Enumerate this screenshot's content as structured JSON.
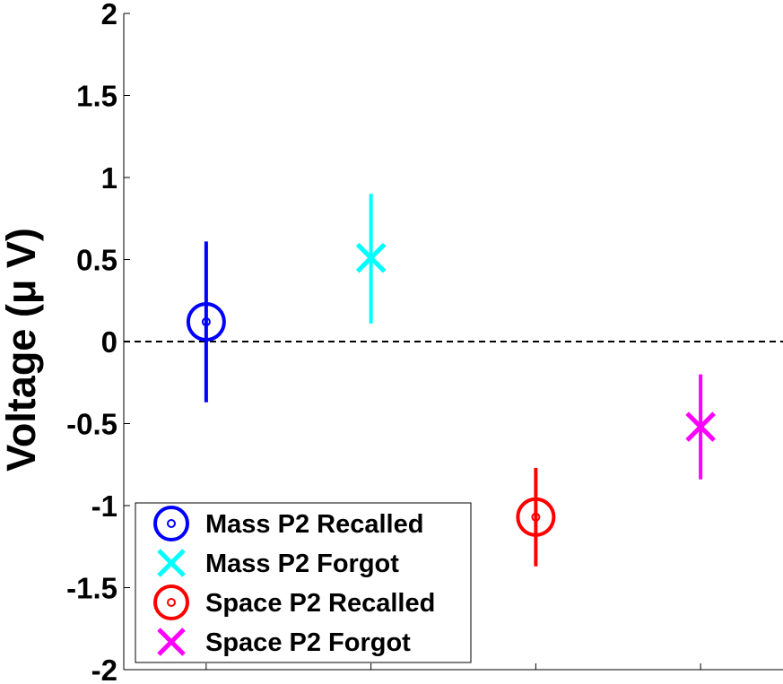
{
  "chart_data": {
    "type": "scatter",
    "title": "",
    "xlabel": "",
    "ylabel": "Voltage (μ V)",
    "ylim": [
      -2,
      2
    ],
    "yticks": [
      2,
      1.5,
      1,
      0.5,
      0,
      -0.5,
      -1,
      -1.5,
      -2
    ],
    "ytick_labels": [
      "2",
      "1.5",
      "1",
      "0.5",
      "0",
      "-0.5",
      "-1",
      "-1.5",
      "-2"
    ],
    "xlim": [
      0.5,
      4.5
    ],
    "xticks": [
      1,
      2,
      3,
      4
    ],
    "reference_line": {
      "y": 0,
      "style": "dashed",
      "color": "#000000"
    },
    "legend_position": "bottom-left",
    "series": [
      {
        "name": "Mass P2 Recalled",
        "x": 1,
        "y": 0.12,
        "err_low": -0.37,
        "err_high": 0.61,
        "marker": "circle",
        "color": "#0000ff"
      },
      {
        "name": "Mass P2 Forgot",
        "x": 2,
        "y": 0.51,
        "err_low": 0.11,
        "err_high": 0.9,
        "marker": "x",
        "color": "#00ffff"
      },
      {
        "name": "Space P2 Recalled",
        "x": 3,
        "y": -1.07,
        "err_low": -1.37,
        "err_high": -0.77,
        "marker": "circle",
        "color": "#ff0000"
      },
      {
        "name": "Space P2 Forgot",
        "x": 4,
        "y": -0.52,
        "err_low": -0.84,
        "err_high": -0.2,
        "marker": "x",
        "color": "#ff00ff"
      }
    ]
  }
}
